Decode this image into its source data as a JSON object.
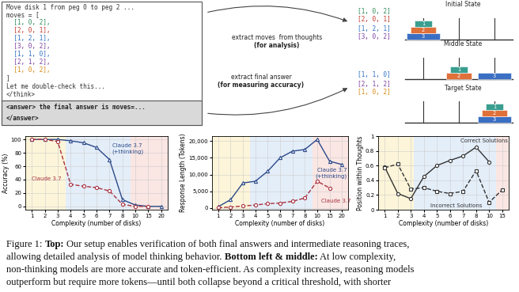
{
  "setup": {
    "thoughts": [
      {
        "text": "Move disk 1 from peg 0 to peg 2 ...",
        "color": "#333333"
      },
      {
        "text": "moves = [",
        "color": "#333333"
      },
      {
        "text": "  [1, 0, 2],",
        "color": "#2e8b57"
      },
      {
        "text": "  [2, 0, 1],",
        "color": "#c0392b"
      },
      {
        "text": "  [1, 2, 1],",
        "color": "#2e6fc4"
      },
      {
        "text": "  [3, 0, 2],",
        "color": "#7b3fa0"
      },
      {
        "text": "  [1, 1, 0],",
        "color": "#2e6fc4"
      },
      {
        "text": "  [2, 1, 2],",
        "color": "#7b3fa0"
      },
      {
        "text": "  [1, 0, 2],",
        "color": "#d68910"
      },
      {
        "text": "]",
        "color": "#333333"
      },
      {
        "text": "Let me double-check this...",
        "color": "#333333"
      },
      {
        "text": "</think>",
        "color": "#333333"
      }
    ],
    "answer": [
      "<answer> the final answer is moves=...",
      "</answer>"
    ],
    "extract_moves": [
      "extract moves  from thoughts",
      "(for analysis)"
    ],
    "extract_answer": [
      "extract final answer",
      "(for measuring accuracy)"
    ],
    "move_groups": [
      [
        {
          "text": "[1, 0, 2]",
          "color": "#2e8b57"
        },
        {
          "text": "[2, 0, 1]",
          "color": "#c0392b"
        },
        {
          "text": "[1, 2, 1]",
          "color": "#2e6fc4"
        },
        {
          "text": "[3, 0, 2]",
          "color": "#7b3fa0"
        }
      ],
      [
        {
          "text": "[1, 1, 0]",
          "color": "#2e6fc4"
        },
        {
          "text": "[2, 1, 2]",
          "color": "#7b3fa0"
        },
        {
          "text": "[1, 0, 2]",
          "color": "#d68910"
        }
      ]
    ],
    "disks": [
      {
        "label": "1",
        "color": "#3a9e8f"
      },
      {
        "label": "2",
        "color": "#e0703a"
      },
      {
        "label": "3",
        "color": "#3b6fc4"
      }
    ],
    "states": [
      {
        "label": "Initial State",
        "pegs": [
          [
            "3",
            "2",
            "1"
          ],
          [],
          []
        ]
      },
      {
        "label": "Middle State",
        "pegs": [
          [],
          [
            "2",
            "1"
          ],
          [
            "3"
          ]
        ]
      },
      {
        "label": "Target State",
        "pegs": [
          [],
          [],
          [
            "3",
            "2",
            "1"
          ]
        ]
      }
    ]
  },
  "chart_data": [
    {
      "type": "line",
      "x_label": "Complexity (number of disks)",
      "y_label": "Accuracy (%)",
      "categories": [
        "1",
        "2",
        "3",
        "4",
        "5",
        "6",
        "7",
        "8",
        "10",
        "15",
        "20"
      ],
      "ylim": [
        -5,
        105
      ],
      "yticks": [
        0,
        20,
        40,
        60,
        80,
        100
      ],
      "grid": true,
      "bands": [
        {
          "from": -0.5,
          "to": 2.6,
          "color": "#fdf5d9"
        },
        {
          "from": 2.6,
          "to": 7.6,
          "color": "#e4eef9"
        },
        {
          "from": 7.6,
          "to": 10.5,
          "color": "#fae6e3"
        }
      ],
      "series": [
        {
          "name": "Claude 3.7\n(+thinking)",
          "color": "#2c4a8a",
          "marker": "^",
          "line_style": "solid",
          "values": [
            100,
            100,
            100,
            98,
            95,
            88,
            70,
            10,
            2,
            0,
            0
          ]
        },
        {
          "name": "Claude 3.7",
          "color": "#a83240",
          "marker": "o",
          "line_style": "dashed",
          "values": [
            100,
            100,
            97,
            33,
            30,
            28,
            23,
            3,
            0,
            0,
            null
          ]
        }
      ]
    },
    {
      "type": "line",
      "x_label": "Complexity (number of disks)",
      "y_label": "Response Length (Tokens)",
      "categories": [
        "1",
        "2",
        "3",
        "4",
        "5",
        "6",
        "7",
        "8",
        "10",
        "15",
        "20"
      ],
      "ylim": [
        -500,
        21500
      ],
      "yticks": [
        0,
        {
          "value": 5000,
          "label": "5,000"
        },
        {
          "value": 10000,
          "label": "10,000"
        },
        {
          "value": 15000,
          "label": "15,000"
        },
        {
          "value": 20000,
          "label": "20,000"
        }
      ],
      "grid": true,
      "bands": [
        {
          "from": -0.5,
          "to": 2.6,
          "color": "#fdf5d9"
        },
        {
          "from": 2.6,
          "to": 7.6,
          "color": "#e4eef9"
        },
        {
          "from": 7.6,
          "to": 10.5,
          "color": "#fae6e3"
        }
      ],
      "series": [
        {
          "name": "Claude 3.7\n(+thinking)",
          "color": "#2c4a8a",
          "marker": "^",
          "line_style": "solid",
          "values": [
            400,
            2500,
            7500,
            8000,
            11000,
            15000,
            17000,
            17500,
            20500,
            14000,
            13000
          ]
        },
        {
          "name": "Claude 3.7",
          "color": "#a83240",
          "marker": "o",
          "line_style": "dashed",
          "values": [
            100,
            300,
            600,
            900,
            1300,
            1500,
            2000,
            3000,
            8000,
            6000,
            null
          ]
        }
      ]
    },
    {
      "type": "line",
      "x_label": "Complexity (number of disks)",
      "y_label": "Position within Thoughts",
      "categories": [
        "1",
        "2",
        "3",
        "4",
        "5",
        "6",
        "7",
        "8",
        "10",
        "15"
      ],
      "ylim": [
        0,
        1
      ],
      "yticks": [
        0,
        0.2,
        0.4,
        0.6,
        0.8,
        1
      ],
      "grid": true,
      "bands": [
        {
          "from": -0.5,
          "to": 2.2,
          "color": "#fdf5d9"
        },
        {
          "from": 2.2,
          "to": 8.5,
          "color": "#e4eef9"
        },
        {
          "from": 8.5,
          "to": 9.5,
          "color": "#fae6e3"
        }
      ],
      "series": [
        {
          "name": "Correct Solutions",
          "color": "#333333",
          "marker": "o",
          "line_style": "solid",
          "values": [
            0.58,
            0.22,
            0.15,
            0.45,
            0.6,
            0.67,
            0.73,
            0.85,
            0.65,
            null
          ]
        },
        {
          "name": "Incorrect Solutions",
          "color": "#333333",
          "marker": "s",
          "line_style": "dashed",
          "values": [
            0.57,
            0.62,
            0.28,
            0.3,
            0.25,
            0.22,
            0.25,
            0.53,
            0.1,
            0.27
          ]
        }
      ]
    }
  ],
  "caption": [
    [
      {
        "text": "Figure 1:",
        "bold": false
      },
      {
        "text": "Top:",
        "bold": true
      },
      {
        "text": "Our setup enables verification of both final answers and intermediate reasoning traces,",
        "bold": false
      }
    ],
    [
      {
        "text": "allowing detailed analysis of model thinking behavior.",
        "bold": false
      },
      {
        "text": "Bottom left & middle:",
        "bold": true
      },
      {
        "text": "At low complexity,",
        "bold": false
      }
    ],
    [
      {
        "text": "non-thinking models are more accurate and token-efficient. As complexity increases, reasoning models",
        "bold": false
      }
    ],
    [
      {
        "text": "outperform but require more tokens—until both collapse beyond a critical threshold, with shorter",
        "bold": false
      }
    ]
  ]
}
